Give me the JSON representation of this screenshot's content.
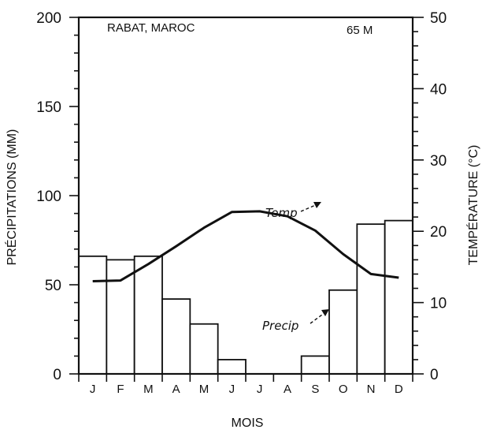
{
  "chart_data": {
    "type": "bar",
    "title": "RABAT, MAROC",
    "elevation_label": "65 M",
    "xlabel": "MOIS",
    "ylabel_left": "PRÉCIPITATIONS (MM)",
    "ylabel_right": "TEMPÉRATURE (°C)",
    "categories": [
      "J",
      "F",
      "M",
      "A",
      "M",
      "J",
      "J",
      "A",
      "S",
      "O",
      "N",
      "D"
    ],
    "ylim_left": [
      0,
      200
    ],
    "ylim_right": [
      0,
      50
    ],
    "yticks_left": [
      "0",
      "50",
      "100",
      "150",
      "200"
    ],
    "yticks_right": [
      "0",
      "10",
      "20",
      "30",
      "40",
      "50"
    ],
    "grid": false,
    "series": [
      {
        "name": "Precip",
        "type": "bar",
        "axis": "left",
        "values": [
          66,
          64,
          66,
          42,
          28,
          8,
          0,
          0,
          10,
          47,
          84,
          86
        ]
      },
      {
        "name": "Temp",
        "type": "line",
        "axis": "right",
        "values": [
          13.0,
          13.1,
          15.4,
          17.9,
          20.5,
          22.7,
          22.8,
          22.1,
          20.1,
          16.8,
          14.0,
          13.5
        ]
      }
    ]
  }
}
